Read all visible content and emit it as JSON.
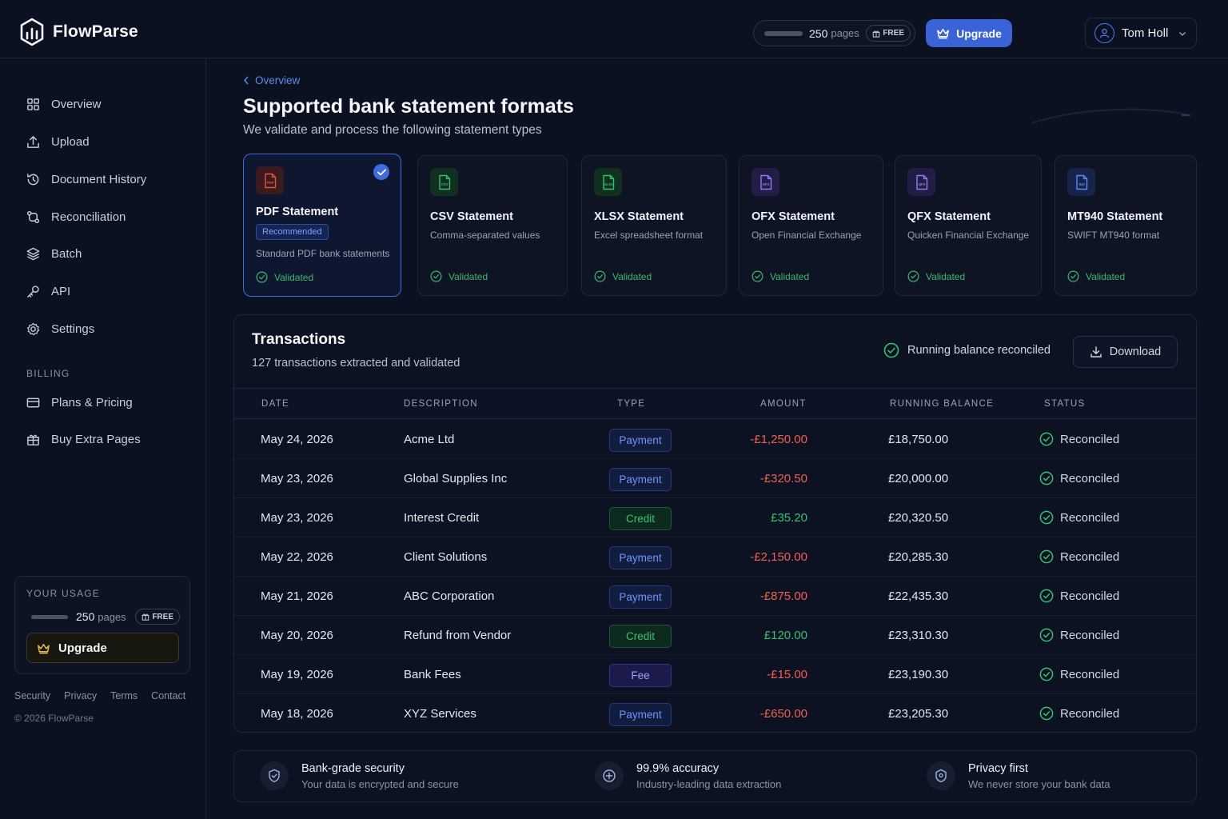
{
  "app": {
    "name": "FlowParse"
  },
  "topbar": {
    "usage_pages": "250",
    "usage_pages_word": "pages",
    "free_label": "FREE",
    "upgrade_label": "Upgrade",
    "user_name": "Tom Holl"
  },
  "sidebar": {
    "items": [
      {
        "label": "Overview",
        "icon": "grid-icon"
      },
      {
        "label": "Upload",
        "icon": "upload-icon"
      },
      {
        "label": "Document History",
        "icon": "history-icon"
      },
      {
        "label": "Reconciliation",
        "icon": "reconcile-icon"
      },
      {
        "label": "Batch",
        "icon": "layers-icon"
      },
      {
        "label": "API",
        "icon": "key-icon"
      },
      {
        "label": "Settings",
        "icon": "gear-icon"
      }
    ],
    "billing_label": "BILLING",
    "billing_items": [
      {
        "label": "Plans & Pricing",
        "icon": "card-icon"
      },
      {
        "label": "Buy Extra Pages",
        "icon": "gift-icon"
      }
    ],
    "usage": {
      "title": "YOUR USAGE",
      "pages": "250",
      "pages_word": "pages",
      "free_label": "FREE",
      "upgrade_label": "Upgrade"
    },
    "footer_links": [
      "Security",
      "Privacy",
      "Terms",
      "Contact"
    ],
    "copyright": "© 2026 FlowParse"
  },
  "main": {
    "breadcrumb": "Overview",
    "title": "Supported bank statement formats",
    "subtitle": "We validate and process the following statement types",
    "formats": [
      {
        "name": "PDF Statement",
        "badge": "Recommended",
        "desc": "Standard PDF bank statements",
        "status": "Validated",
        "icon_text": "PDF",
        "color": "#e5533d",
        "bg": "#3a1a1f",
        "selected": true
      },
      {
        "name": "CSV Statement",
        "desc": "Comma-separated values",
        "status": "Validated",
        "icon_text": "CSV",
        "color": "#36c16f",
        "bg": "#12301f"
      },
      {
        "name": "XLSX Statement",
        "desc": "Excel spreadsheet format",
        "status": "Validated",
        "icon_text": "XLSX",
        "color": "#36c16f",
        "bg": "#12301f"
      },
      {
        "name": "OFX Statement",
        "desc": "Open Financial Exchange",
        "status": "Validated",
        "icon_text": "OFX",
        "color": "#8f7cf5",
        "bg": "#221d45"
      },
      {
        "name": "QFX Statement",
        "desc": "Quicken Financial Exchange",
        "status": "Validated",
        "icon_text": "QFX",
        "color": "#8f7cf5",
        "bg": "#221d45"
      },
      {
        "name": "MT940 Statement",
        "desc": "SWIFT MT940 format",
        "status": "Validated",
        "icon_text": "940",
        "color": "#5b8cf5",
        "bg": "#16244a"
      }
    ]
  },
  "transactions": {
    "title": "Transactions",
    "subtitle": "127 transactions extracted and validated",
    "reconciled_note": "Running balance reconciled",
    "download_label": "Download",
    "columns": [
      "DATE",
      "DESCRIPTION",
      "TYPE",
      "AMOUNT",
      "RUNNING BALANCE",
      "STATUS"
    ],
    "rows": [
      {
        "date": "May 24, 2026",
        "description": "Acme Ltd",
        "type": "Payment",
        "amount": "-£1,250.00",
        "balance": "£18,750.00",
        "status": "Reconciled"
      },
      {
        "date": "May 23, 2026",
        "description": "Global Supplies Inc",
        "type": "Payment",
        "amount": "-£320.50",
        "balance": "£20,000.00",
        "status": "Reconciled"
      },
      {
        "date": "May 23, 2026",
        "description": "Interest Credit",
        "type": "Credit",
        "amount": "£35.20",
        "balance": "£20,320.50",
        "status": "Reconciled"
      },
      {
        "date": "May 22, 2026",
        "description": "Client Solutions",
        "type": "Payment",
        "amount": "-£2,150.00",
        "balance": "£20,285.30",
        "status": "Reconciled"
      },
      {
        "date": "May 21, 2026",
        "description": "ABC Corporation",
        "type": "Payment",
        "amount": "-£875.00",
        "balance": "£22,435.30",
        "status": "Reconciled"
      },
      {
        "date": "May 20, 2026",
        "description": "Refund from Vendor",
        "type": "Credit",
        "amount": "£120.00",
        "balance": "£23,310.30",
        "status": "Reconciled"
      },
      {
        "date": "May 19, 2026",
        "description": "Bank Fees",
        "type": "Fee",
        "amount": "-£15.00",
        "balance": "£23,190.30",
        "status": "Reconciled"
      },
      {
        "date": "May 18, 2026",
        "description": "XYZ Services",
        "type": "Payment",
        "amount": "-£650.00",
        "balance": "£23,205.30",
        "status": "Reconciled"
      }
    ]
  },
  "features": [
    {
      "title": "Bank-grade security",
      "sub": "Your data is encrypted and secure",
      "icon": "shield-icon"
    },
    {
      "title": "99.9% accuracy",
      "sub": "Industry-leading data extraction",
      "icon": "target-icon"
    },
    {
      "title": "Privacy first",
      "sub": "We never store your bank data",
      "icon": "privacy-shield-icon"
    }
  ],
  "colors": {
    "accent": "#3b63d8",
    "positive": "#36c16f",
    "negative": "#f0604e",
    "background": "#0b1120"
  }
}
